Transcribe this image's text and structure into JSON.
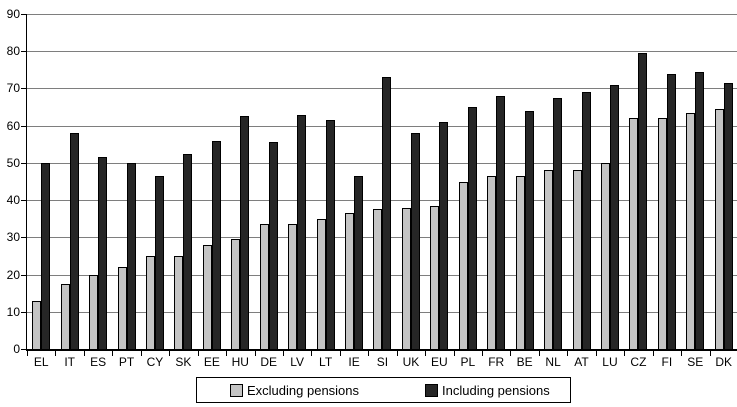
{
  "chart_data": {
    "type": "bar",
    "title": "",
    "xlabel": "",
    "ylabel": "",
    "categories": [
      "EL",
      "IT",
      "ES",
      "PT",
      "CY",
      "SK",
      "EE",
      "HU",
      "DE",
      "LV",
      "LT",
      "IE",
      "SI",
      "UK",
      "EU",
      "PL",
      "FR",
      "BE",
      "NL",
      "AT",
      "LU",
      "CZ",
      "FI",
      "SE",
      "DK"
    ],
    "series": [
      {
        "name": "Excluding pensions",
        "color": "#c4c4c4",
        "values": [
          13,
          17.5,
          20,
          22,
          25,
          25,
          28,
          29.5,
          33.5,
          33.5,
          35,
          36.5,
          37.5,
          38,
          38.5,
          45,
          46.5,
          46.5,
          48,
          48,
          50,
          62,
          62,
          63.5,
          64.5
        ]
      },
      {
        "name": "Including pensions",
        "color": "#262626",
        "values": [
          50,
          58,
          51.5,
          50,
          46.5,
          52.5,
          56,
          62.5,
          55.5,
          63,
          61.5,
          46.5,
          73,
          58,
          61,
          65,
          68,
          64,
          67.5,
          69,
          71,
          79.5,
          74,
          74.5,
          71.5
        ]
      }
    ],
    "ylim": [
      0,
      90
    ],
    "ytick_step": 10,
    "grid": "horizontal",
    "gridline_color": "#7e7e7e",
    "legend_position": "bottom"
  }
}
